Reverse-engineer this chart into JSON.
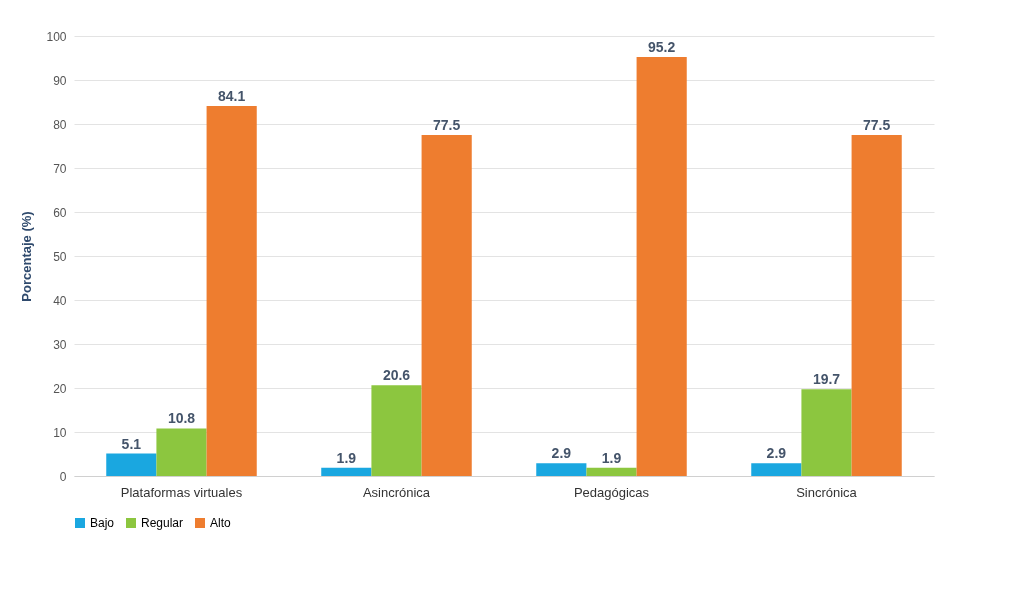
{
  "chart_data": {
    "type": "bar",
    "ylabel": "Porcentaje (%)",
    "categories": [
      "Plataformas virtuales",
      "Asincrónica",
      "Pedagógicas",
      "Sincrónica"
    ],
    "series": [
      {
        "name": "Bajo",
        "color": "#1aa7e0",
        "values": [
          5.1,
          1.9,
          2.9,
          2.9
        ]
      },
      {
        "name": "Regular",
        "color": "#8cc63f",
        "values": [
          10.8,
          20.6,
          1.9,
          19.7
        ]
      },
      {
        "name": "Alto",
        "color": "#ee7d2f",
        "values": [
          84.1,
          77.5,
          95.2,
          77.5
        ]
      }
    ],
    "ylim": [
      0,
      100
    ],
    "yticks": [
      0,
      10,
      20,
      30,
      40,
      50,
      60,
      70,
      80,
      90,
      100
    ],
    "grid": "y",
    "legend": "bottom",
    "data_labels": true
  }
}
